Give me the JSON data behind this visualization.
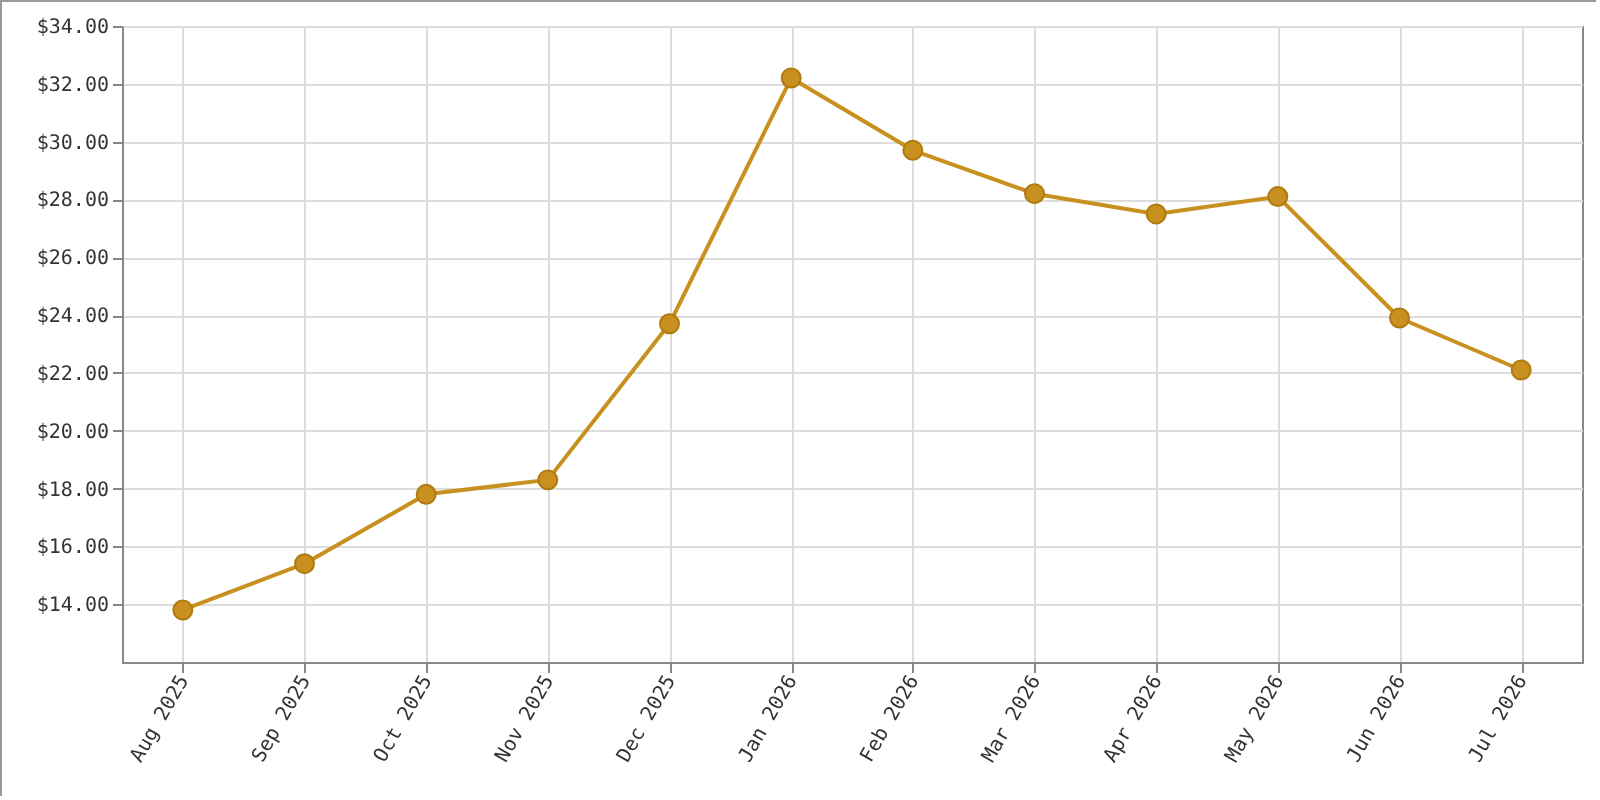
{
  "chart_data": {
    "type": "line",
    "categories": [
      "Aug 2025",
      "Sep 2025",
      "Oct 2025",
      "Nov 2025",
      "Dec 2025",
      "Jan 2026",
      "Feb 2026",
      "Mar 2026",
      "Apr 2026",
      "May 2026",
      "Jun 2026",
      "Jul 2026"
    ],
    "series": [
      {
        "color": "#c8901e",
        "values": [
          13.8,
          15.4,
          17.8,
          18.3,
          23.7,
          32.2,
          29.7,
          28.2,
          27.5,
          28.1,
          23.9,
          22.1
        ]
      }
    ],
    "ylim": [
      12,
      34
    ],
    "yticks": [
      {
        "value": 14,
        "label": "$14.00"
      },
      {
        "value": 16,
        "label": "$16.00"
      },
      {
        "value": 18,
        "label": "$18.00"
      },
      {
        "value": 20,
        "label": "$20.00"
      },
      {
        "value": 22,
        "label": "$22.00"
      },
      {
        "value": 24,
        "label": "$24.00"
      },
      {
        "value": 26,
        "label": "$26.00"
      },
      {
        "value": 28,
        "label": "$28.00"
      },
      {
        "value": 30,
        "label": "$30.00"
      },
      {
        "value": 32,
        "label": "$32.00"
      },
      {
        "value": 34,
        "label": "$34.00"
      }
    ],
    "grid": true,
    "marker": "circle",
    "line_style": "solid"
  }
}
